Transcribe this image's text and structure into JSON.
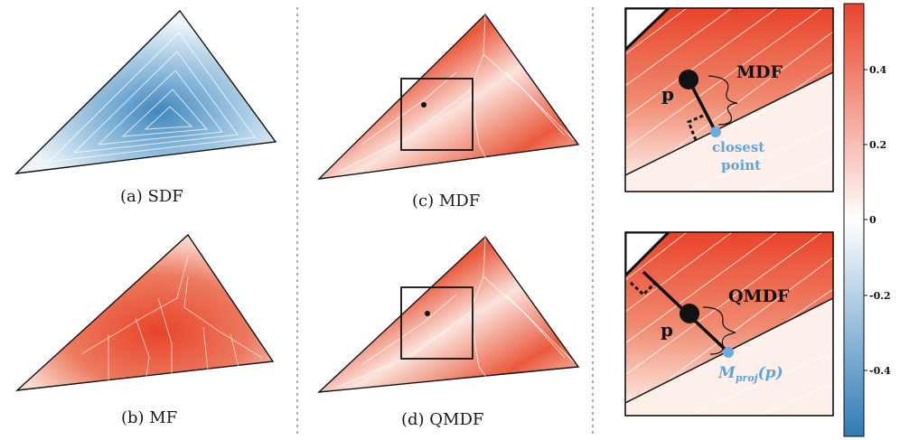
{
  "captions": {
    "a": "(a) SDF",
    "b": "(b) MF",
    "c": "(c) MDF",
    "d": "(d) QMDF"
  },
  "zoom_top": {
    "point_label": "p",
    "distance_label": "MDF",
    "closest_line1": "closest",
    "closest_line2": "point"
  },
  "zoom_bottom": {
    "point_label": "p",
    "distance_label": "QMDF",
    "proj_base": "M",
    "proj_sub": "proj",
    "proj_arg": "(p)"
  },
  "colorbar": {
    "ticks": [
      "0.4",
      "0.2",
      "0",
      "-0.2",
      "-0.4"
    ],
    "colors": {
      "high": "#e8442a",
      "mid": "#ffffff",
      "low": "#2f7bb6"
    }
  }
}
